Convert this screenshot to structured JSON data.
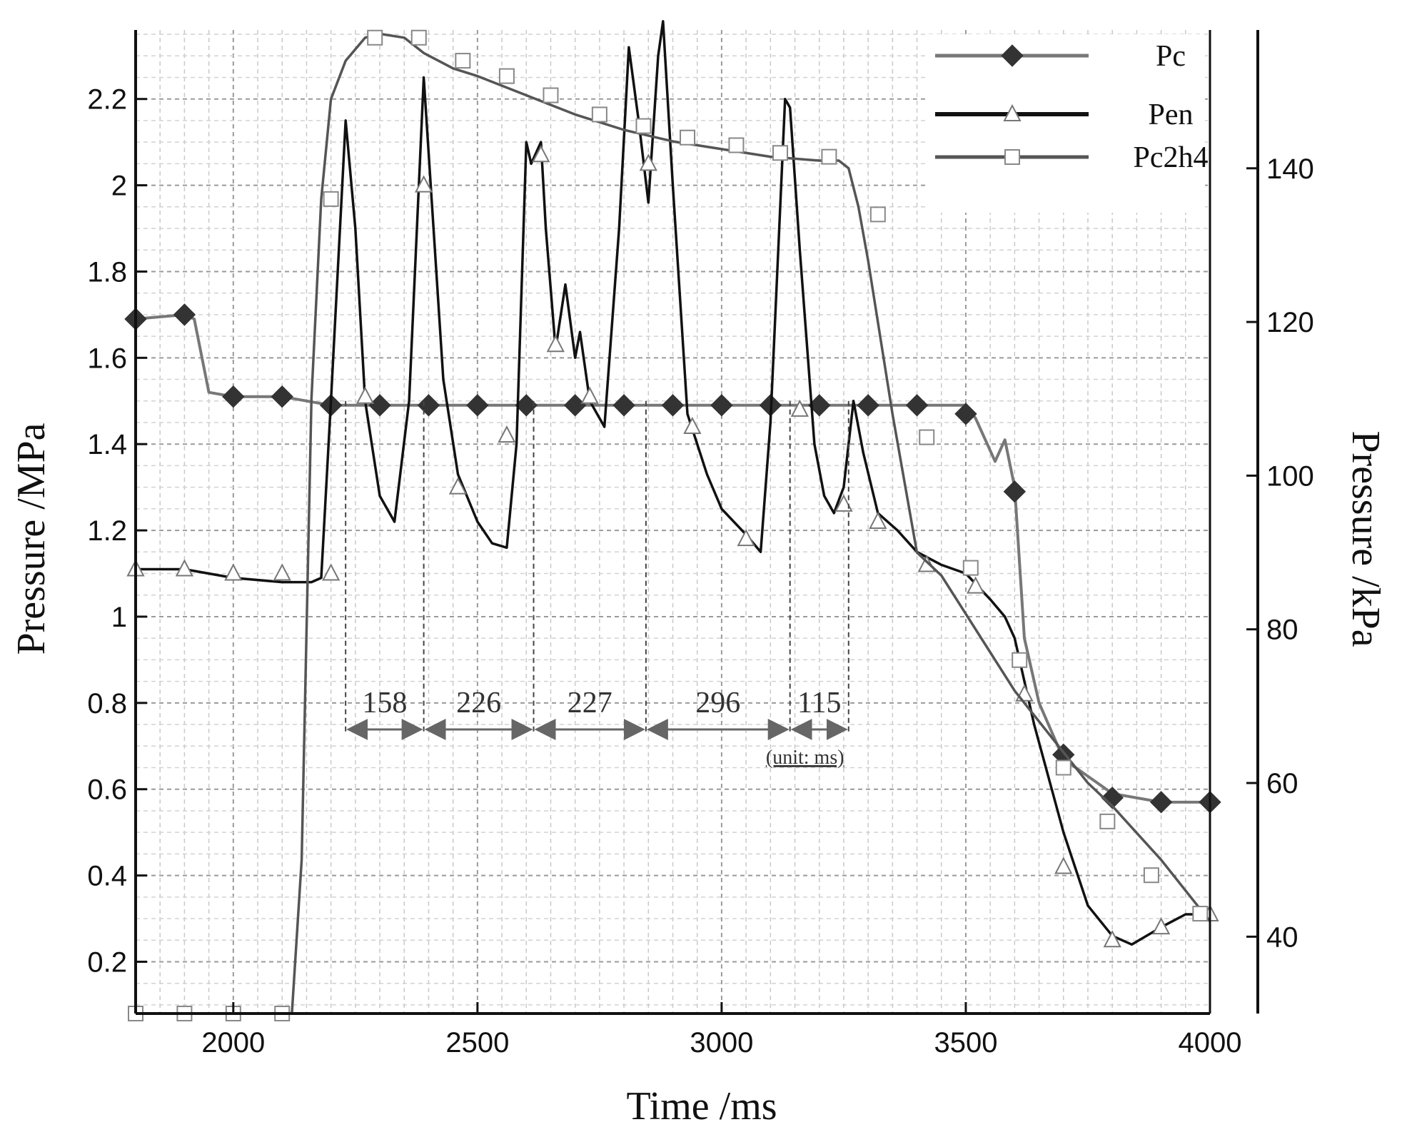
{
  "chart_data": {
    "type": "line",
    "xlabel": "Time /ms",
    "ylabel_left": "Pressure /MPa",
    "ylabel_right": "Pressure /kPa",
    "x_range": [
      1800,
      4000
    ],
    "x_ticks": [
      2000,
      2500,
      3000,
      3500,
      4000
    ],
    "y_left_range": [
      0.08,
      2.36
    ],
    "y_left_ticks": [
      0.2,
      0.4,
      0.6,
      0.8,
      1,
      1.2,
      1.4,
      1.6,
      1.8,
      2,
      2.2
    ],
    "y_left_tick_labels": [
      "0.2",
      "0.4",
      "0.6",
      "0.8",
      "1",
      "1.2",
      "1.4",
      "1.6",
      "1.8",
      "2",
      "2.2"
    ],
    "y_right_range": [
      30,
      158
    ],
    "y_right_ticks": [
      40,
      60,
      80,
      100,
      120,
      140
    ],
    "grid": true,
    "legend_position": "top-right",
    "series": [
      {
        "name": "Pc",
        "axis": "left",
        "color": "#777777",
        "marker": "diamond",
        "x": [
          1800,
          1900,
          1920,
          1950,
          2000,
          2100,
          2200,
          2300,
          2400,
          2500,
          2600,
          2700,
          2800,
          2900,
          3000,
          3100,
          3200,
          3300,
          3400,
          3500,
          3520,
          3560,
          3580,
          3600,
          3620,
          3650,
          3700,
          3800,
          3900,
          4000
        ],
        "y": [
          1.69,
          1.7,
          1.69,
          1.52,
          1.51,
          1.51,
          1.49,
          1.49,
          1.49,
          1.49,
          1.49,
          1.49,
          1.49,
          1.49,
          1.49,
          1.49,
          1.49,
          1.49,
          1.49,
          1.49,
          1.46,
          1.36,
          1.41,
          1.3,
          0.95,
          0.8,
          0.67,
          0.59,
          0.57,
          0.57
        ],
        "marker_x": [
          1800,
          1900,
          2000,
          2100,
          2200,
          2300,
          2400,
          2500,
          2600,
          2700,
          2800,
          2900,
          3000,
          3100,
          3200,
          3300,
          3400,
          3500,
          3600,
          3700,
          3800,
          3900,
          4000
        ],
        "marker_y": [
          1.69,
          1.7,
          1.51,
          1.51,
          1.49,
          1.49,
          1.49,
          1.49,
          1.49,
          1.49,
          1.49,
          1.49,
          1.49,
          1.49,
          1.49,
          1.49,
          1.49,
          1.47,
          1.29,
          0.68,
          0.58,
          0.57,
          0.57
        ]
      },
      {
        "name": "Pen",
        "axis": "left",
        "color": "#111111",
        "marker": "triangle",
        "x": [
          1800,
          1900,
          2000,
          2100,
          2160,
          2180,
          2200,
          2230,
          2250,
          2270,
          2300,
          2330,
          2360,
          2390,
          2410,
          2430,
          2460,
          2500,
          2530,
          2560,
          2580,
          2600,
          2610,
          2630,
          2640,
          2660,
          2680,
          2700,
          2710,
          2730,
          2760,
          2790,
          2810,
          2830,
          2850,
          2870,
          2880,
          2900,
          2930,
          2970,
          3000,
          3050,
          3080,
          3100,
          3130,
          3140,
          3160,
          3190,
          3210,
          3230,
          3250,
          3270,
          3290,
          3320,
          3360,
          3400,
          3450,
          3500,
          3550,
          3580,
          3600,
          3640,
          3700,
          3750,
          3800,
          3840,
          3900,
          3950,
          4000
        ],
        "y": [
          1.11,
          1.11,
          1.09,
          1.08,
          1.08,
          1.09,
          1.5,
          2.15,
          1.9,
          1.5,
          1.28,
          1.22,
          1.5,
          2.25,
          1.9,
          1.55,
          1.33,
          1.22,
          1.17,
          1.16,
          1.4,
          2.1,
          2.05,
          2.1,
          1.9,
          1.62,
          1.77,
          1.6,
          1.66,
          1.5,
          1.44,
          1.9,
          2.32,
          2.15,
          1.96,
          2.3,
          2.38,
          2.0,
          1.47,
          1.33,
          1.25,
          1.19,
          1.15,
          1.45,
          2.2,
          2.18,
          1.85,
          1.4,
          1.28,
          1.24,
          1.3,
          1.5,
          1.38,
          1.24,
          1.2,
          1.15,
          1.12,
          1.1,
          1.04,
          1.0,
          0.95,
          0.75,
          0.5,
          0.33,
          0.26,
          0.24,
          0.28,
          0.31,
          0.31
        ],
        "marker_x": [
          1800,
          1900,
          2000,
          2100,
          2200,
          2270,
          2390,
          2460,
          2560,
          2630,
          2660,
          2730,
          2850,
          2940,
          3050,
          3160,
          3250,
          3320,
          3420,
          3520,
          3620,
          3700,
          3800,
          3900,
          4000
        ],
        "marker_y": [
          1.11,
          1.11,
          1.1,
          1.1,
          1.1,
          1.51,
          2.0,
          1.3,
          1.42,
          2.07,
          1.63,
          1.51,
          2.05,
          1.44,
          1.18,
          1.48,
          1.26,
          1.22,
          1.12,
          1.07,
          0.82,
          0.42,
          0.25,
          0.28,
          0.31
        ]
      },
      {
        "name": "Pc2h4",
        "axis": "right",
        "color": "#555555",
        "marker": "square",
        "x": [
          1800,
          2000,
          2120,
          2140,
          2160,
          2180,
          2200,
          2230,
          2270,
          2300,
          2350,
          2390,
          2450,
          2500,
          2600,
          2700,
          2800,
          2900,
          3000,
          3100,
          3200,
          3240,
          3260,
          3280,
          3300,
          3350,
          3400,
          3450,
          3500,
          3550,
          3600,
          3650,
          3700,
          3750,
          3800,
          3900,
          4000
        ],
        "y": [
          30,
          30,
          30,
          50,
          110,
          136,
          149,
          154,
          157,
          157.5,
          157,
          155,
          153,
          152,
          149.5,
          147,
          145,
          143.5,
          142.5,
          141.5,
          141,
          141,
          140,
          135,
          128,
          108,
          90,
          87,
          82,
          77,
          72,
          68,
          64,
          60,
          57,
          50,
          42
        ],
        "marker_x": [
          1800,
          1900,
          2000,
          2100,
          2200,
          2290,
          2380,
          2470,
          2560,
          2650,
          2750,
          2840,
          2930,
          3030,
          3120,
          3220,
          3320,
          3420,
          3510,
          3610,
          3700,
          3790,
          3880,
          3980
        ],
        "marker_y": [
          30,
          30,
          30,
          30,
          136,
          157,
          157,
          154,
          152,
          149.5,
          147,
          145.5,
          144,
          143,
          142,
          141.5,
          134,
          105,
          88,
          76,
          62,
          55,
          48,
          43
        ]
      }
    ],
    "annotations": {
      "interval_boundaries_x": [
        2230,
        2390,
        2615,
        2845,
        3140,
        3260
      ],
      "interval_labels": [
        "158",
        "226",
        "227",
        "296",
        "115"
      ],
      "unit_note": "(unit: ms)"
    }
  }
}
